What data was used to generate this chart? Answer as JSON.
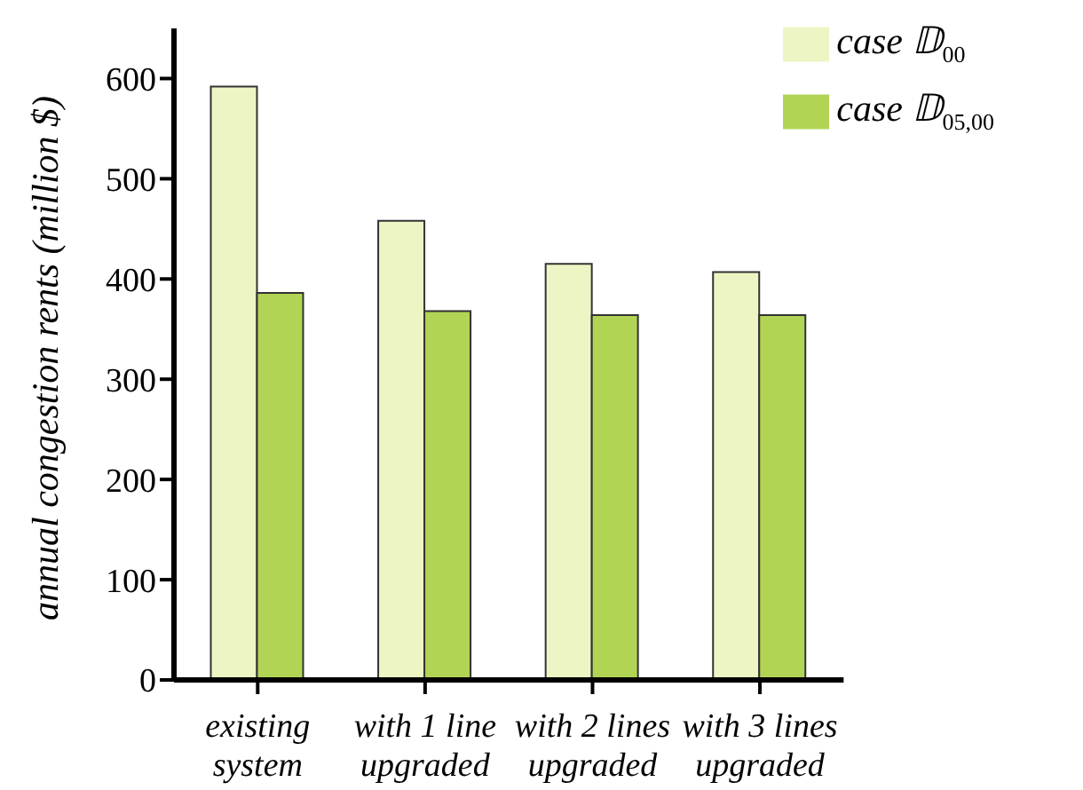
{
  "chart_data": {
    "type": "bar",
    "ylabel": "annual congestion rents (million $)",
    "categories": [
      "existing system",
      "with 1 line upgraded",
      "with 2 lines upgraded",
      "with 3 lines upgraded"
    ],
    "series": [
      {
        "name": "case 𝔻$_{00}$",
        "color": "#edf5c4",
        "values": [
          592,
          458,
          415,
          407
        ]
      },
      {
        "name": "case 𝔻$_{05,00}$",
        "color": "#b2d454",
        "values": [
          386,
          368,
          364,
          364
        ]
      }
    ],
    "ylim": [
      0,
      650
    ],
    "yticks": [
      0,
      100,
      200,
      300,
      400,
      500,
      600
    ],
    "grid": false,
    "legend": "top right"
  }
}
